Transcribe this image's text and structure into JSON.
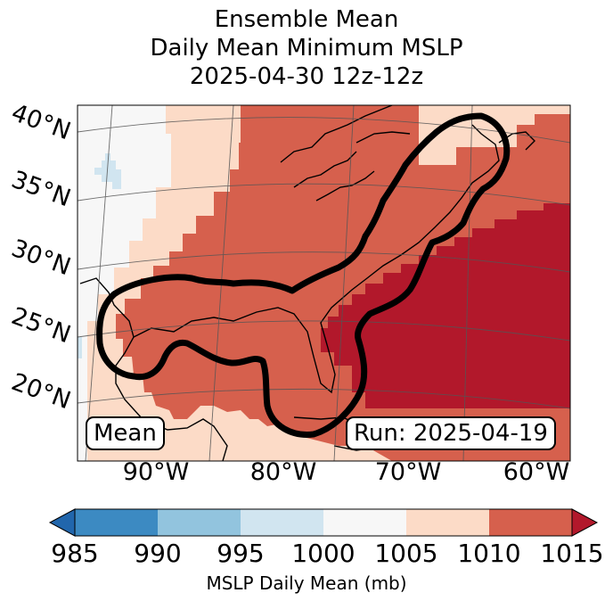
{
  "title": {
    "line1": "Ensemble Mean",
    "line2": "Daily Mean Minimum MSLP",
    "line3": "2025-04-30 12z-12z"
  },
  "latitude_labels": [
    "40°N",
    "35°N",
    "30°N",
    "25°N",
    "20°N"
  ],
  "longitude_labels": [
    "90°W",
    "80°W",
    "70°W",
    "60°W"
  ],
  "mean_label": "Mean",
  "run_label": "Run: 2025-04-19",
  "colorbar": {
    "ticks": [
      "985",
      "990",
      "995",
      "1000",
      "1005",
      "1010",
      "1015"
    ],
    "label": "MSLP Daily Mean (mb)",
    "colors": [
      "#2166ac",
      "#3c8ac2",
      "#92c4de",
      "#d1e5f0",
      "#f7f7f7",
      "#fcdbc7",
      "#d6604d",
      "#b2182b"
    ]
  },
  "colors": {
    "p1000_1005": "#f7f7f7",
    "p995_1000": "#d1e5f0",
    "p1005_1010": "#fcdbc7",
    "p1010_1015": "#d6604d",
    "p1015_plus": "#b2182b"
  }
}
